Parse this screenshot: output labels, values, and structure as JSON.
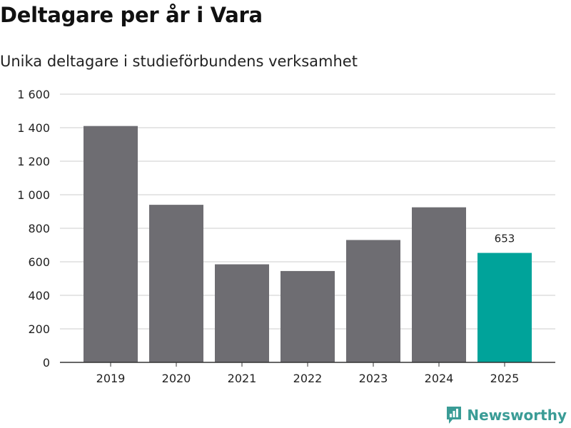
{
  "header": {
    "title": "Deltagare per år i Vara",
    "subtitle": "Unika deltagare i studieförbundens verksamhet"
  },
  "brand": {
    "name": "Newsworthy",
    "color": "#3a9c96"
  },
  "colors": {
    "bar_default": "#6e6d72",
    "bar_highlight": "#00a39a",
    "grid": "#d8d8d8",
    "axis": "#333333",
    "tick_text": "#222222"
  },
  "chart_data": {
    "type": "bar",
    "title": "Deltagare per år i Vara",
    "subtitle": "Unika deltagare i studieförbundens verksamhet",
    "xlabel": "",
    "ylabel": "",
    "categories": [
      "2019",
      "2020",
      "2021",
      "2022",
      "2023",
      "2024",
      "2025"
    ],
    "values": [
      1410,
      940,
      585,
      545,
      730,
      925,
      653
    ],
    "highlight_index": 6,
    "data_labels": [
      {
        "index": 6,
        "text": "653"
      }
    ],
    "ylim": [
      0,
      1600
    ],
    "yticks": [
      0,
      200,
      400,
      600,
      800,
      1000,
      1200,
      1400,
      1600
    ],
    "ytick_labels": [
      "0",
      "200",
      "400",
      "600",
      "800",
      "1 000",
      "1 200",
      "1 400",
      "1 600"
    ],
    "grid": true,
    "legend": "none"
  }
}
